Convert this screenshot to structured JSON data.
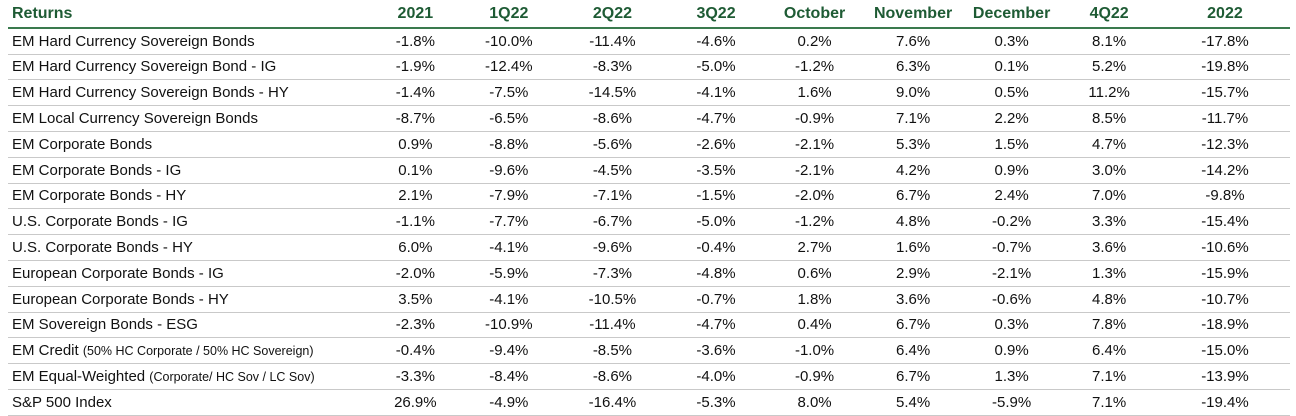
{
  "table": {
    "headers": [
      "Returns",
      "2021",
      "1Q22",
      "2Q22",
      "3Q22",
      "October",
      "November",
      "December",
      "4Q22",
      "2022"
    ],
    "rows": [
      {
        "label": "EM Hard Currency Sovereign Bonds",
        "note": "",
        "values": [
          "-1.8%",
          "-10.0%",
          "-11.4%",
          "-4.6%",
          "0.2%",
          "7.6%",
          "0.3%",
          "8.1%",
          "-17.8%"
        ]
      },
      {
        "label": "EM Hard Currency Sovereign Bond - IG",
        "note": "",
        "values": [
          "-1.9%",
          "-12.4%",
          "-8.3%",
          "-5.0%",
          "-1.2%",
          "6.3%",
          "0.1%",
          "5.2%",
          "-19.8%"
        ]
      },
      {
        "label": "EM Hard Currency Sovereign Bonds - HY",
        "note": "",
        "values": [
          "-1.4%",
          "-7.5%",
          "-14.5%",
          "-4.1%",
          "1.6%",
          "9.0%",
          "0.5%",
          "11.2%",
          "-15.7%"
        ]
      },
      {
        "label": "EM Local Currency Sovereign Bonds",
        "note": "",
        "values": [
          "-8.7%",
          "-6.5%",
          "-8.6%",
          "-4.7%",
          "-0.9%",
          "7.1%",
          "2.2%",
          "8.5%",
          "-11.7%"
        ]
      },
      {
        "label": "EM Corporate Bonds",
        "note": "",
        "values": [
          "0.9%",
          "-8.8%",
          "-5.6%",
          "-2.6%",
          "-2.1%",
          "5.3%",
          "1.5%",
          "4.7%",
          "-12.3%"
        ]
      },
      {
        "label": "EM Corporate Bonds - IG",
        "note": "",
        "values": [
          "0.1%",
          "-9.6%",
          "-4.5%",
          "-3.5%",
          "-2.1%",
          "4.2%",
          "0.9%",
          "3.0%",
          "-14.2%"
        ]
      },
      {
        "label": "EM Corporate Bonds - HY",
        "note": "",
        "values": [
          "2.1%",
          "-7.9%",
          "-7.1%",
          "-1.5%",
          "-2.0%",
          "6.7%",
          "2.4%",
          "7.0%",
          "-9.8%"
        ]
      },
      {
        "label": "U.S. Corporate Bonds - IG",
        "note": "",
        "values": [
          "-1.1%",
          "-7.7%",
          "-6.7%",
          "-5.0%",
          "-1.2%",
          "4.8%",
          "-0.2%",
          "3.3%",
          "-15.4%"
        ]
      },
      {
        "label": "U.S. Corporate Bonds - HY",
        "note": "",
        "values": [
          "6.0%",
          "-4.1%",
          "-9.6%",
          "-0.4%",
          "2.7%",
          "1.6%",
          "-0.7%",
          "3.6%",
          "-10.6%"
        ]
      },
      {
        "label": "European Corporate Bonds - IG",
        "note": "",
        "values": [
          "-2.0%",
          "-5.9%",
          "-7.3%",
          "-4.8%",
          "0.6%",
          "2.9%",
          "-2.1%",
          "1.3%",
          "-15.9%"
        ]
      },
      {
        "label": "European Corporate Bonds - HY",
        "note": "",
        "values": [
          "3.5%",
          "-4.1%",
          "-10.5%",
          "-0.7%",
          "1.8%",
          "3.6%",
          "-0.6%",
          "4.8%",
          "-10.7%"
        ]
      },
      {
        "label": "EM Sovereign Bonds - ESG",
        "note": "",
        "values": [
          "-2.3%",
          "-10.9%",
          "-11.4%",
          "-4.7%",
          "0.4%",
          "6.7%",
          "0.3%",
          "7.8%",
          "-18.9%"
        ]
      },
      {
        "label": "EM  Credit",
        "note": "(50% HC Corporate / 50% HC Sovereign)",
        "values": [
          "-0.4%",
          "-9.4%",
          "-8.5%",
          "-3.6%",
          "-1.0%",
          "6.4%",
          "0.9%",
          "6.4%",
          "-15.0%"
        ]
      },
      {
        "label": "EM Equal-Weighted",
        "note": "(Corporate/ HC Sov / LC Sov)",
        "values": [
          "-3.3%",
          "-8.4%",
          "-8.6%",
          "-4.0%",
          "-0.9%",
          "6.7%",
          "1.3%",
          "7.1%",
          "-13.9%"
        ]
      },
      {
        "label": "S&P 500 Index",
        "note": "",
        "values": [
          "26.9%",
          "-4.9%",
          "-16.4%",
          "-5.3%",
          "8.0%",
          "5.4%",
          "-5.9%",
          "7.1%",
          "-19.4%"
        ]
      }
    ]
  },
  "colors": {
    "header_text": "#1e5b34",
    "header_rule": "#3a7a4e",
    "row_rule": "#c9c9c9"
  }
}
